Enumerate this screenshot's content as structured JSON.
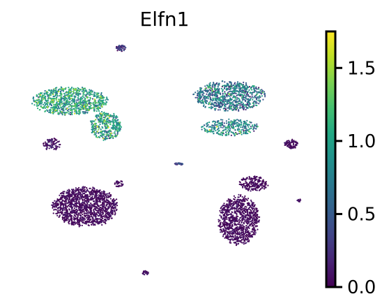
{
  "chart_data": {
    "type": "scatter",
    "title": "Elfn1",
    "xlabel": "",
    "ylabel": "",
    "axes_visible": false,
    "colormap": "viridis",
    "colorbar": {
      "ticks": [
        0.0,
        0.5,
        1.0,
        1.5
      ],
      "tick_labels": [
        "0.0",
        "0.5",
        "1.0",
        "1.5"
      ],
      "range": [
        0.0,
        1.75
      ]
    },
    "clusters": [
      {
        "name": "",
        "center": [
          -3.2,
          4.6
        ],
        "spread": [
          2.1,
          0.9
        ],
        "value_mean": 0.95,
        "value_sd": 0.28,
        "points": 900
      },
      {
        "name": "",
        "center": [
          -1.3,
          3.1
        ],
        "spread": [
          0.9,
          0.9
        ],
        "value_mean": 0.85,
        "value_sd": 0.3,
        "points": 380
      },
      {
        "name": "",
        "center": [
          -4.2,
          2.0
        ],
        "spread": [
          0.5,
          0.4
        ],
        "value_mean": 0.05,
        "value_sd": 0.1,
        "points": 90
      },
      {
        "name": "",
        "center": [
          -2.4,
          -1.8
        ],
        "spread": [
          1.85,
          1.25
        ],
        "value_mean": 0.02,
        "value_sd": 0.06,
        "points": 1400
      },
      {
        "name": "",
        "center": [
          -0.6,
          -0.4
        ],
        "spread": [
          0.25,
          0.2
        ],
        "value_mean": 0.03,
        "value_sd": 0.05,
        "points": 30
      },
      {
        "name": "",
        "center": [
          -0.5,
          7.8
        ],
        "spread": [
          0.3,
          0.2
        ],
        "value_mean": 0.2,
        "value_sd": 0.15,
        "points": 55
      },
      {
        "name": "",
        "center": [
          5.3,
          4.9
        ],
        "spread": [
          2.0,
          0.95
        ],
        "value_mean": 0.6,
        "value_sd": 0.3,
        "points": 850
      },
      {
        "name": "",
        "center": [
          5.3,
          3.0
        ],
        "spread": [
          1.6,
          0.55
        ],
        "value_mean": 0.75,
        "value_sd": 0.28,
        "points": 300
      },
      {
        "name": "",
        "center": [
          8.6,
          2.0
        ],
        "spread": [
          0.4,
          0.3
        ],
        "value_mean": 0.03,
        "value_sd": 0.06,
        "points": 80
      },
      {
        "name": "",
        "center": [
          6.6,
          -0.4
        ],
        "spread": [
          0.8,
          0.5
        ],
        "value_mean": 0.02,
        "value_sd": 0.06,
        "points": 200
      },
      {
        "name": "",
        "center": [
          5.8,
          -2.6
        ],
        "spread": [
          1.15,
          1.55
        ],
        "value_mean": 0.02,
        "value_sd": 0.06,
        "points": 950
      },
      {
        "name": "",
        "center": [
          2.6,
          0.8
        ],
        "spread": [
          0.25,
          0.08
        ],
        "value_mean": 0.3,
        "value_sd": 0.15,
        "points": 30
      },
      {
        "name": "",
        "center": [
          0.8,
          -5.8
        ],
        "spread": [
          0.2,
          0.15
        ],
        "value_mean": 0.05,
        "value_sd": 0.05,
        "points": 25
      },
      {
        "name": "",
        "center": [
          9.0,
          -1.4
        ],
        "spread": [
          0.12,
          0.12
        ],
        "value_mean": 0.05,
        "value_sd": 0.05,
        "points": 12
      }
    ],
    "xlim": [
      -6.2,
      9.8
    ],
    "ylim": [
      -6.4,
      8.4
    ]
  }
}
